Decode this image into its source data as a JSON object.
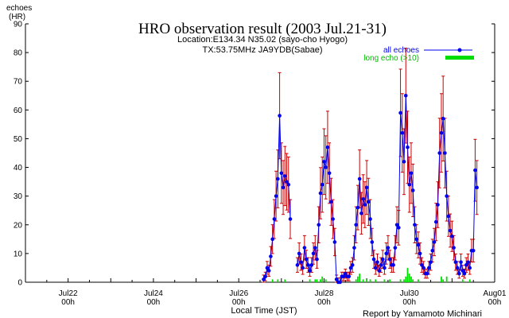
{
  "chart_data": {
    "type": "line",
    "title": "HRO observation result (2003 Jul.21-31)",
    "subtitle_location": "Location:E134.34 N35.02 (sayo-cho Hyogo)",
    "subtitle_tx": "TX:53.75MHz JA9YDB(Sabae)",
    "ylabel_line1": "echoes",
    "ylabel_line2": "(HR)",
    "xlabel": "Local Time (JST)",
    "credit": "Report by Yamamoto Michinari",
    "ylim": [
      0,
      90
    ],
    "yticks": [
      0,
      10,
      20,
      30,
      40,
      50,
      60,
      70,
      80,
      90
    ],
    "xlim_hours": [
      0,
      264
    ],
    "xticks": [
      {
        "hour": 24,
        "label1": "Jul22",
        "label2": "00h"
      },
      {
        "hour": 72,
        "label1": "Jul24",
        "label2": "00h"
      },
      {
        "hour": 120,
        "label1": "Jul26",
        "label2": "00h"
      },
      {
        "hour": 168,
        "label1": "Jul28",
        "label2": "00h"
      },
      {
        "hour": 216,
        "label1": "Jul30",
        "label2": "00h"
      },
      {
        "hour": 264,
        "label1": "Aug01",
        "label2": "00h"
      }
    ],
    "legend": {
      "position": "top-right",
      "all_label": "all echoes",
      "long_label": "long echo (>10)"
    },
    "colors": {
      "all": "#0000ee",
      "error": "#cc0000",
      "long": "#00dd00",
      "axis": "#000000"
    },
    "series": [
      {
        "name": "all echoes",
        "kind": "line-with-errorbars",
        "points": [
          [
            134,
            1
          ],
          [
            135,
            2
          ],
          [
            136,
            5
          ],
          [
            137,
            4
          ],
          [
            138,
            9
          ],
          [
            139,
            15
          ],
          [
            140,
            22
          ],
          [
            141,
            30
          ],
          [
            142,
            36
          ],
          [
            143,
            58
          ],
          [
            144,
            38
          ],
          [
            145,
            33
          ],
          [
            146,
            37
          ],
          [
            147,
            35
          ],
          [
            148,
            34
          ],
          [
            149,
            22
          ],
          [
            153,
            6
          ],
          [
            154,
            10
          ],
          [
            155,
            7
          ],
          [
            156,
            5
          ],
          [
            157,
            12
          ],
          [
            158,
            8
          ],
          [
            159,
            6
          ],
          [
            160,
            4
          ],
          [
            161,
            6
          ],
          [
            162,
            10
          ],
          [
            163,
            12
          ],
          [
            164,
            8
          ],
          [
            165,
            20
          ],
          [
            166,
            31
          ],
          [
            167,
            34
          ],
          [
            168,
            42
          ],
          [
            169,
            40
          ],
          [
            170,
            47
          ],
          [
            171,
            38
          ],
          [
            172,
            28
          ],
          [
            173,
            22
          ],
          [
            174,
            14
          ],
          [
            175,
            1
          ],
          [
            176,
            0
          ],
          [
            177,
            0
          ],
          [
            178,
            2
          ],
          [
            179,
            2
          ],
          [
            180,
            3
          ],
          [
            181,
            2
          ],
          [
            182,
            2
          ],
          [
            183,
            5
          ],
          [
            184,
            6
          ],
          [
            185,
            12
          ],
          [
            186,
            20
          ],
          [
            187,
            26
          ],
          [
            188,
            36
          ],
          [
            189,
            24
          ],
          [
            190,
            29
          ],
          [
            191,
            27
          ],
          [
            192,
            33
          ],
          [
            193,
            28
          ],
          [
            194,
            22
          ],
          [
            195,
            14
          ],
          [
            196,
            8
          ],
          [
            197,
            5
          ],
          [
            198,
            7
          ],
          [
            199,
            4
          ],
          [
            200,
            6
          ],
          [
            201,
            8
          ],
          [
            202,
            5
          ],
          [
            203,
            10
          ],
          [
            204,
            12
          ],
          [
            205,
            8
          ],
          [
            206,
            6
          ],
          [
            207,
            6
          ],
          [
            208,
            12
          ],
          [
            209,
            20
          ],
          [
            210,
            19
          ],
          [
            211,
            59
          ],
          [
            212,
            52
          ],
          [
            213,
            42
          ],
          [
            214,
            65
          ],
          [
            215,
            47
          ],
          [
            216,
            34
          ],
          [
            217,
            38
          ],
          [
            218,
            32
          ],
          [
            219,
            20
          ],
          [
            220,
            15
          ],
          [
            221,
            13
          ],
          [
            222,
            10
          ],
          [
            223,
            6
          ],
          [
            224,
            5
          ],
          [
            225,
            3
          ],
          [
            226,
            3
          ],
          [
            227,
            5
          ],
          [
            228,
            7
          ],
          [
            229,
            11
          ],
          [
            230,
            14
          ],
          [
            231,
            21
          ],
          [
            232,
            27
          ],
          [
            233,
            45
          ],
          [
            234,
            52
          ],
          [
            235,
            57
          ],
          [
            236,
            45
          ],
          [
            237,
            30
          ],
          [
            238,
            23
          ],
          [
            239,
            18
          ],
          [
            240,
            16
          ],
          [
            241,
            12
          ],
          [
            242,
            7
          ],
          [
            243,
            5
          ],
          [
            244,
            3
          ],
          [
            245,
            7
          ],
          [
            246,
            4
          ],
          [
            247,
            3
          ],
          [
            248,
            6
          ],
          [
            249,
            7
          ],
          [
            250,
            5
          ],
          [
            251,
            11
          ],
          [
            252,
            11
          ],
          [
            253,
            39
          ],
          [
            254,
            33
          ]
        ],
        "error_frac": 0.18
      },
      {
        "name": "long echo (>10)",
        "kind": "bar",
        "points": [
          [
            139,
            1
          ],
          [
            142,
            1
          ],
          [
            146,
            1
          ],
          [
            160,
            1
          ],
          [
            163,
            1
          ],
          [
            164,
            1
          ],
          [
            166,
            1
          ],
          [
            167,
            2
          ],
          [
            169,
            1
          ],
          [
            186,
            1
          ],
          [
            187,
            2
          ],
          [
            188,
            3
          ],
          [
            190,
            1
          ],
          [
            192,
            1
          ],
          [
            194,
            1
          ],
          [
            197,
            1
          ],
          [
            202,
            1
          ],
          [
            205,
            1
          ],
          [
            211,
            1
          ],
          [
            213,
            1
          ],
          [
            214,
            2
          ],
          [
            215,
            5
          ],
          [
            216,
            3
          ],
          [
            217,
            2
          ],
          [
            218,
            1
          ],
          [
            221,
            1
          ],
          [
            234,
            2
          ],
          [
            235,
            1
          ],
          [
            237,
            2
          ],
          [
            246,
            1
          ],
          [
            250,
            1
          ]
        ]
      }
    ]
  }
}
